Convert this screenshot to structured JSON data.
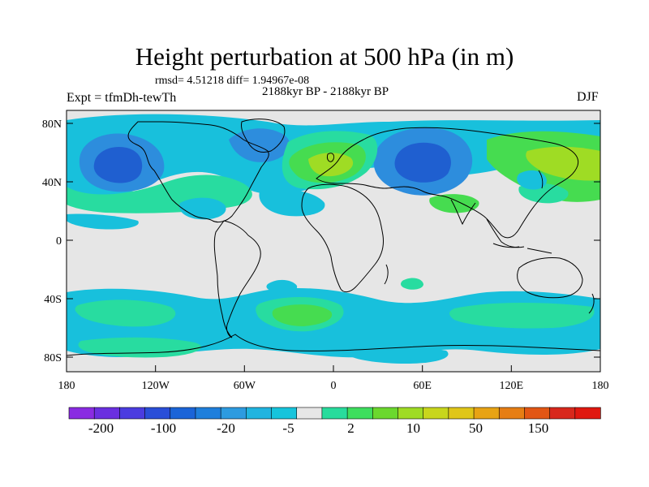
{
  "title": "Height perturbation at 500 hPa (in m)",
  "stats_text": "rmsd= 4.51218 diff= 1.94967e-08",
  "period": "2188kyr BP - 2188kyr BP",
  "experiment": "Expt = tfmDh-tewTh",
  "season": "DJF",
  "lat_ticks": [
    "80N",
    "40N",
    "0",
    "40S",
    "80S"
  ],
  "lon_ticks": [
    "180",
    "120W",
    "60W",
    "0",
    "60E",
    "120E",
    "180"
  ],
  "colorbar": {
    "colors": [
      "#8a2be2",
      "#6a2fe0",
      "#4b3ce0",
      "#2a4ed8",
      "#1b64d8",
      "#1f7fdc",
      "#2d9be0",
      "#20b4e0",
      "#16c4dc",
      "#e6e6e6",
      "#28dc9c",
      "#3ede5e",
      "#6bd82e",
      "#9fdc24",
      "#c8d61c",
      "#e0c618",
      "#e8a314",
      "#e67e14",
      "#e25614",
      "#d8281c",
      "#e01810"
    ],
    "labels": [
      "-200",
      "-100",
      "-20",
      "-5",
      "2",
      "10",
      "50",
      "150"
    ]
  },
  "field_colors": {
    "neutral": "#e6e6e6",
    "blue_strong": "#1f5fd0",
    "blue_mid": "#2d8ddd",
    "blue_light": "#20b0e0",
    "cyan": "#18c0dc",
    "teal": "#28dca0",
    "green": "#46dc50",
    "yellowgreen": "#9fdc24",
    "yellow": "#d6d21a",
    "coast": "#000000"
  }
}
